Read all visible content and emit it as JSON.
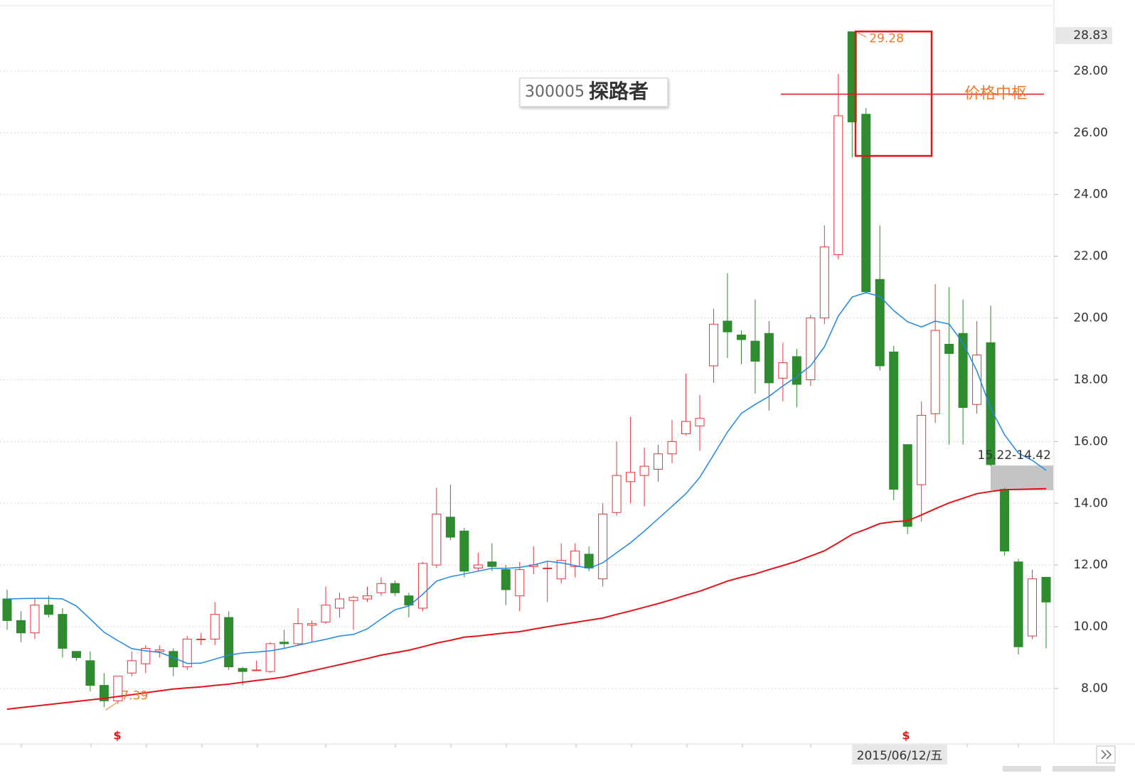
{
  "chart_data": {
    "type": "candlestick",
    "title_code": "300005",
    "title_name": "探路者",
    "up_color": "#e8333a",
    "down_color": "#2e8b2e",
    "open": [
      10.9,
      10.2,
      9.8,
      10.7,
      10.4,
      9.2,
      8.9,
      8.1,
      7.6,
      8.5,
      8.8,
      9.2,
      9.2,
      8.7,
      9.6,
      9.6,
      10.3,
      8.65,
      8.6,
      8.55,
      9.5,
      9.45,
      10.05,
      10.15,
      10.6,
      10.85,
      10.9,
      11.1,
      11.4,
      11.0,
      10.6,
      12.0,
      13.55,
      13.1,
      11.9,
      12.1,
      11.85,
      11.0,
      11.95,
      11.9,
      11.55,
      11.95,
      12.35,
      11.55,
      13.7,
      14.7,
      14.9,
      15.1,
      15.6,
      16.25,
      16.5,
      18.45,
      19.9,
      19.45,
      19.25,
      19.5,
      18.05,
      18.75,
      18.0,
      20.0,
      22.05,
      29.27,
      26.6,
      21.25,
      18.9,
      15.9,
      14.6,
      16.9,
      19.15,
      19.5,
      17.2,
      19.2,
      14.45,
      12.1,
      9.7,
      11.6
    ],
    "high": [
      11.2,
      10.5,
      10.9,
      11.0,
      10.6,
      9.2,
      9.2,
      8.5,
      8.4,
      9.2,
      9.4,
      9.4,
      9.3,
      9.7,
      9.8,
      10.8,
      10.5,
      8.7,
      8.9,
      9.5,
      9.9,
      10.6,
      10.2,
      11.3,
      11.1,
      11.0,
      11.3,
      11.6,
      11.5,
      11.1,
      12.1,
      14.5,
      14.6,
      13.2,
      12.4,
      12.7,
      12.0,
      12.1,
      12.6,
      12.1,
      12.7,
      12.7,
      12.6,
      14.0,
      16.0,
      16.8,
      15.8,
      15.9,
      16.7,
      18.2,
      17.5,
      20.3,
      21.45,
      19.6,
      20.6,
      19.9,
      19.2,
      19.0,
      20.1,
      23.0,
      27.9,
      29.28,
      26.8,
      23.0,
      19.1,
      15.9,
      17.3,
      21.1,
      21.0,
      20.6,
      19.9,
      20.4,
      14.5,
      12.2,
      11.85,
      11.6
    ],
    "low": [
      9.9,
      9.5,
      9.6,
      10.3,
      9.0,
      8.9,
      7.9,
      7.39,
      7.5,
      8.4,
      8.5,
      9.0,
      8.4,
      8.6,
      9.4,
      9.4,
      8.6,
      8.1,
      8.6,
      8.5,
      9.3,
      9.4,
      9.5,
      10.1,
      10.3,
      9.9,
      10.8,
      11.0,
      11.0,
      10.3,
      10.5,
      11.9,
      12.8,
      11.6,
      11.8,
      11.8,
      10.7,
      10.5,
      11.7,
      10.8,
      11.4,
      11.6,
      11.8,
      11.3,
      13.6,
      14.0,
      13.9,
      14.7,
      15.3,
      16.2,
      15.7,
      17.9,
      18.7,
      18.5,
      17.55,
      17.0,
      17.3,
      17.1,
      17.8,
      19.8,
      21.9,
      25.2,
      20.8,
      18.3,
      14.1,
      13.0,
      13.4,
      16.6,
      15.9,
      15.9,
      16.9,
      15.2,
      12.3,
      9.1,
      9.6,
      9.3
    ],
    "close": [
      10.2,
      9.8,
      10.7,
      10.4,
      9.3,
      9.0,
      8.1,
      7.6,
      8.4,
      8.9,
      9.3,
      9.25,
      8.7,
      9.6,
      9.6,
      10.4,
      8.7,
      8.55,
      8.6,
      9.45,
      9.45,
      10.1,
      10.1,
      10.7,
      10.9,
      10.95,
      11.0,
      11.4,
      11.1,
      10.7,
      12.05,
      13.65,
      12.9,
      11.8,
      12.0,
      11.95,
      11.2,
      11.85,
      12.0,
      11.9,
      12.15,
      12.45,
      11.9,
      13.65,
      14.9,
      15.0,
      15.2,
      15.6,
      16.0,
      16.65,
      16.75,
      19.8,
      19.55,
      19.3,
      18.6,
      17.9,
      18.55,
      17.85,
      20.0,
      22.3,
      26.55,
      26.35,
      20.85,
      18.45,
      14.45,
      13.25,
      16.85,
      19.6,
      18.85,
      17.1,
      18.8,
      15.25,
      12.45,
      9.35,
      11.55,
      10.8
    ],
    "moving_averages": [
      {
        "color": "#1e88e5",
        "values": [
          10.9,
          10.91,
          10.92,
          10.92,
          10.9,
          10.67,
          10.25,
          9.82,
          9.55,
          9.29,
          9.22,
          9.17,
          9.0,
          8.81,
          8.82,
          8.95,
          9.08,
          9.15,
          9.18,
          9.22,
          9.3,
          9.4,
          9.5,
          9.59,
          9.7,
          9.75,
          9.93,
          10.25,
          10.55,
          10.67,
          11.05,
          11.48,
          11.62,
          11.71,
          11.8,
          11.89,
          11.89,
          11.92,
          12.0,
          12.12,
          12.07,
          11.98,
          11.89,
          12.07,
          12.4,
          12.72,
          13.1,
          13.5,
          13.9,
          14.31,
          14.84,
          15.57,
          16.31,
          16.91,
          17.2,
          17.46,
          17.8,
          18.1,
          18.45,
          19.07,
          20.06,
          20.68,
          20.82,
          20.7,
          20.24,
          19.88,
          19.71,
          19.9,
          19.8,
          19.19,
          18.29,
          17.07,
          16.22,
          15.62,
          15.39,
          15.07
        ]
      },
      {
        "color": "#e0161b",
        "values": [
          7.33,
          7.38,
          7.43,
          7.48,
          7.53,
          7.58,
          7.63,
          7.68,
          7.74,
          7.8,
          7.86,
          7.92,
          7.98,
          8.02,
          8.05,
          8.1,
          8.14,
          8.2,
          8.26,
          8.31,
          8.37,
          8.47,
          8.57,
          8.67,
          8.77,
          8.87,
          8.97,
          9.08,
          9.16,
          9.24,
          9.35,
          9.47,
          9.56,
          9.66,
          9.7,
          9.75,
          9.8,
          9.84,
          9.92,
          10.0,
          10.07,
          10.14,
          10.21,
          10.28,
          10.4,
          10.51,
          10.63,
          10.75,
          10.88,
          11.02,
          11.15,
          11.31,
          11.48,
          11.6,
          11.71,
          11.85,
          11.98,
          12.12,
          12.29,
          12.46,
          12.72,
          12.99,
          13.16,
          13.34,
          13.4,
          13.43,
          13.62,
          13.82,
          14.01,
          14.16,
          14.31,
          14.38,
          14.44,
          14.45,
          14.46,
          14.47
        ]
      }
    ],
    "ylim": [
      6.25,
      30.07
    ],
    "yticks": [
      {
        "value": 8,
        "label": "8.00"
      },
      {
        "value": 10,
        "label": "10.00"
      },
      {
        "value": 12,
        "label": "12.00"
      },
      {
        "value": 14,
        "label": "14.00"
      },
      {
        "value": 16,
        "label": "16.00"
      },
      {
        "value": 18,
        "label": "18.00"
      },
      {
        "value": 20,
        "label": "20.00"
      },
      {
        "value": 22,
        "label": "22.00"
      },
      {
        "value": 24,
        "label": "24.00"
      },
      {
        "value": 26,
        "label": "26.00"
      },
      {
        "value": 28,
        "label": "28.00"
      }
    ],
    "grid": true,
    "last_price": "28.83",
    "high_label": 29.28,
    "low_label": 7.39,
    "pivot_label": "价格中枢",
    "pivot_value": 27.25,
    "pivot_box": [
      25.25,
      29.28
    ],
    "zone": {
      "low": 14.42,
      "high": 15.22,
      "label": "15.22-14.42"
    },
    "signals": [
      "$",
      "$"
    ],
    "crosshair_date": "2015/06/12/五"
  }
}
